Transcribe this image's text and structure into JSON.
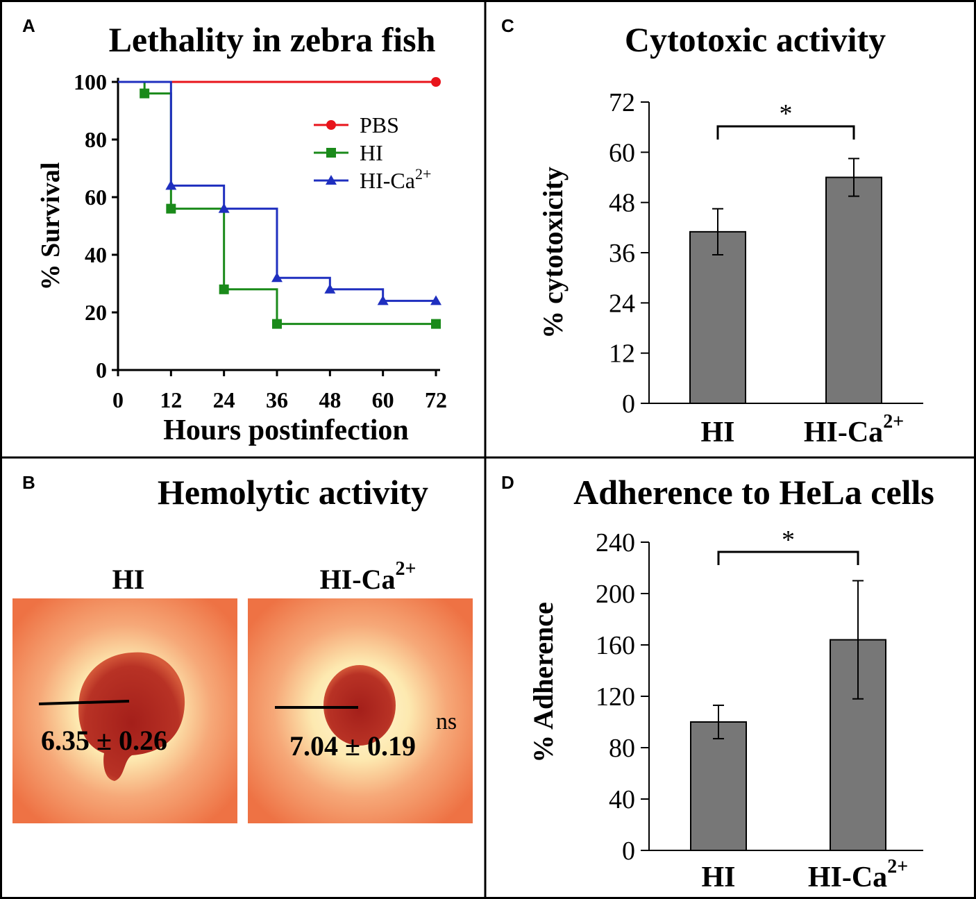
{
  "panels": {
    "A": {
      "label": "A",
      "title": "Lethality in zebra fish"
    },
    "B": {
      "label": "B",
      "title": "Hemolytic activity"
    },
    "C": {
      "label": "C",
      "title": "Cytotoxic activity"
    },
    "D": {
      "label": "D",
      "title": "Adherence to HeLa cells"
    }
  },
  "colors": {
    "pbs": "#e8141b",
    "hi": "#1a8a1a",
    "hica": "#1f2fbf",
    "bar": "#777777",
    "agar_outer": "#ee7a4a",
    "halo": "#fff2c0",
    "clot": "#b52a20"
  },
  "chart_data": [
    {
      "panel": "A",
      "type": "line",
      "step": true,
      "title": "Lethality in zebra fish",
      "xlabel": "Hours postinfection",
      "ylabel": "% Survival",
      "xlim": [
        0,
        72
      ],
      "ylim": [
        0,
        100
      ],
      "xticks": [
        0,
        12,
        24,
        36,
        48,
        60,
        72
      ],
      "yticks": [
        0,
        20,
        40,
        60,
        80,
        100
      ],
      "legend_position": "top-right",
      "series": [
        {
          "name": "PBS",
          "color": "#e8141b",
          "marker": "circle",
          "x": [
            0,
            72
          ],
          "y": [
            100,
            100
          ],
          "marker_x": [
            72
          ],
          "marker_y": [
            100
          ]
        },
        {
          "name": "HI",
          "color": "#1a8a1a",
          "marker": "square",
          "x": [
            0,
            6,
            12,
            24,
            36,
            72
          ],
          "y": [
            100,
            96,
            56,
            28,
            16,
            16
          ],
          "marker_x": [
            6,
            12,
            24,
            36,
            72
          ],
          "marker_y": [
            96,
            56,
            28,
            16,
            16
          ]
        },
        {
          "name": "HI-Ca",
          "name_sup": "2+",
          "color": "#1f2fbf",
          "marker": "triangle",
          "x": [
            0,
            12,
            24,
            36,
            48,
            60,
            72
          ],
          "y": [
            100,
            64,
            56,
            32,
            28,
            24,
            24
          ],
          "marker_x": [
            12,
            24,
            36,
            48,
            60,
            72
          ],
          "marker_y": [
            64,
            56,
            32,
            28,
            24,
            24
          ]
        }
      ]
    },
    {
      "panel": "C",
      "type": "bar",
      "title": "Cytotoxic activity",
      "ylabel": "% cytotoxicity",
      "categories": [
        "HI",
        "HI-Ca"
      ],
      "category_sups": [
        "",
        "2+"
      ],
      "values": [
        41,
        54
      ],
      "errors": [
        5.5,
        4.5
      ],
      "ylim": [
        0,
        72
      ],
      "yticks": [
        0,
        12,
        24,
        36,
        48,
        60,
        72
      ],
      "significance": "*"
    },
    {
      "panel": "D",
      "type": "bar",
      "title": "Adherence to HeLa cells",
      "ylabel": "% Adherence",
      "categories": [
        "HI",
        "HI-Ca"
      ],
      "category_sups": [
        "",
        "2+"
      ],
      "values": [
        100,
        164
      ],
      "errors": [
        13,
        46
      ],
      "ylim": [
        0,
        240
      ],
      "yticks": [
        0,
        40,
        80,
        120,
        160,
        200,
        240
      ],
      "significance": "*"
    }
  ],
  "hemolysis": {
    "plates": [
      {
        "label": "HI",
        "sup": "",
        "value": "6.35 ± 0.26",
        "note": ""
      },
      {
        "label": "HI-Ca",
        "sup": "2+",
        "value": "7.04 ± 0.19",
        "note": "ns"
      }
    ]
  }
}
